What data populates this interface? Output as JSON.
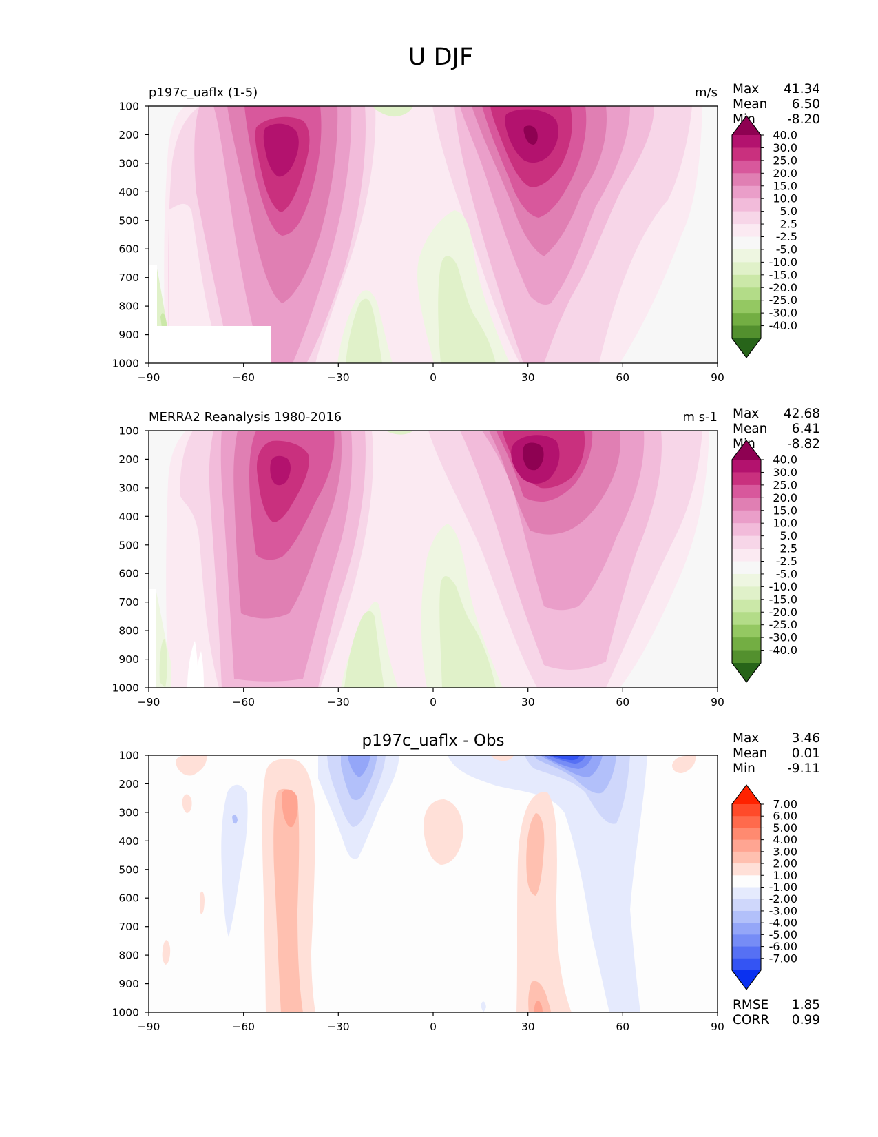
{
  "figure": {
    "title": "U DJF"
  },
  "chart_data": [
    {
      "type": "contour",
      "title": "p197c_uaflx (1-5)",
      "units": "m/s",
      "xlim": [
        -90,
        90
      ],
      "ylim": [
        1000,
        100
      ],
      "xticks": [
        "−90",
        "−60",
        "−30",
        "0",
        "30",
        "60",
        "90"
      ],
      "yticks": [
        "100",
        "200",
        "300",
        "400",
        "500",
        "600",
        "700",
        "800",
        "900",
        "1000"
      ],
      "stats": [
        {
          "label": "Max",
          "value": "41.34"
        },
        {
          "label": "Mean",
          "value": "6.50"
        },
        {
          "label": "Min",
          "value": "-8.20"
        }
      ],
      "levels": [
        "40.0",
        "30.0",
        "25.0",
        "20.0",
        "15.0",
        "10.0",
        "5.0",
        "2.5",
        "-2.5",
        "-5.0",
        "-10.0",
        "-15.0",
        "-20.0",
        "-25.0",
        "-30.0",
        "-40.0"
      ],
      "colormap": [
        "#8e0152",
        "#b3126e",
        "#c9307e",
        "#d8589c",
        "#e07fb3",
        "#ea9ec9",
        "#f2bbda",
        "#f7d6e8",
        "#fbeaf2",
        "#f7f7f7",
        "#eef6e1",
        "#e0f1c9",
        "#cbe8a8",
        "#b3dc88",
        "#94c862",
        "#73ae43",
        "#53902e",
        "#276419"
      ]
    },
    {
      "type": "contour",
      "title": "MERRA2 Reanalysis 1980-2016",
      "units": "m s-1",
      "xlim": [
        -90,
        90
      ],
      "ylim": [
        1000,
        100
      ],
      "xticks": [
        "−90",
        "−60",
        "−30",
        "0",
        "30",
        "60",
        "90"
      ],
      "yticks": [
        "100",
        "200",
        "300",
        "400",
        "500",
        "600",
        "700",
        "800",
        "900",
        "1000"
      ],
      "stats": [
        {
          "label": "Max",
          "value": "42.68"
        },
        {
          "label": "Mean",
          "value": "6.41"
        },
        {
          "label": "Min",
          "value": "-8.82"
        }
      ],
      "levels": [
        "40.0",
        "30.0",
        "25.0",
        "20.0",
        "15.0",
        "10.0",
        "5.0",
        "2.5",
        "-2.5",
        "-5.0",
        "-10.0",
        "-15.0",
        "-20.0",
        "-25.0",
        "-30.0",
        "-40.0"
      ],
      "colormap": [
        "#8e0152",
        "#b3126e",
        "#c9307e",
        "#d8589c",
        "#e07fb3",
        "#ea9ec9",
        "#f2bbda",
        "#f7d6e8",
        "#fbeaf2",
        "#f7f7f7",
        "#eef6e1",
        "#e0f1c9",
        "#cbe8a8",
        "#b3dc88",
        "#94c862",
        "#73ae43",
        "#53902e",
        "#276419"
      ]
    },
    {
      "type": "contour",
      "title": "p197c_uaflx - Obs",
      "xlim": [
        -90,
        90
      ],
      "ylim": [
        1000,
        100
      ],
      "xticks": [
        "−90",
        "−60",
        "−30",
        "0",
        "30",
        "60",
        "90"
      ],
      "yticks": [
        "100",
        "200",
        "300",
        "400",
        "500",
        "600",
        "700",
        "800",
        "900",
        "1000"
      ],
      "stats": [
        {
          "label": "Max",
          "value": "3.46"
        },
        {
          "label": "Mean",
          "value": "0.01"
        },
        {
          "label": "Min",
          "value": "-9.11"
        }
      ],
      "extra_stats": [
        {
          "label": "RMSE",
          "value": "1.85"
        },
        {
          "label": "CORR",
          "value": "0.99"
        }
      ],
      "levels": [
        "7.00",
        "6.00",
        "5.00",
        "4.00",
        "3.00",
        "2.00",
        "1.00",
        "-1.00",
        "-2.00",
        "-3.00",
        "-4.00",
        "-5.00",
        "-6.00",
        "-7.00"
      ],
      "colormap": [
        "#ff2200",
        "#ff4a2a",
        "#ff6a4c",
        "#ff8a70",
        "#ffa592",
        "#ffc0b0",
        "#ffe0d8",
        "#fdfdfd",
        "#e5eafd",
        "#cfd7fb",
        "#b2c0fa",
        "#94a6f8",
        "#768cf6",
        "#5670f4",
        "#3454f3",
        "#0a31f0"
      ]
    }
  ]
}
